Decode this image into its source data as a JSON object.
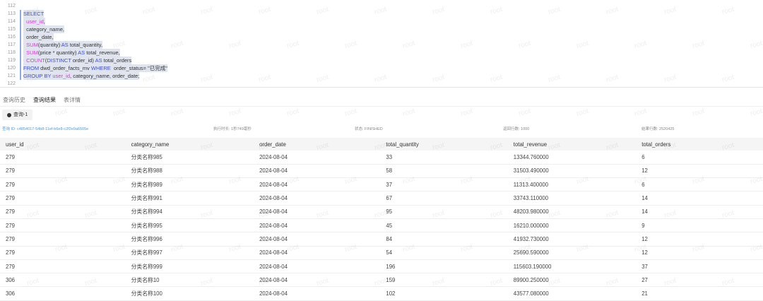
{
  "editor": {
    "lines": [
      {
        "n": "112",
        "tokens": []
      },
      {
        "n": "113",
        "tokens": [
          {
            "t": "SELECT",
            "c": "kw"
          }
        ]
      },
      {
        "n": "114",
        "tokens": [
          {
            "t": "  "
          },
          {
            "t": "user_id",
            "c": "id"
          },
          {
            "t": ","
          }
        ]
      },
      {
        "n": "115",
        "tokens": [
          {
            "t": "  category_name,"
          }
        ]
      },
      {
        "n": "116",
        "tokens": [
          {
            "t": "  order_date,"
          }
        ]
      },
      {
        "n": "117",
        "tokens": [
          {
            "t": "  "
          },
          {
            "t": "SUM",
            "c": "fn"
          },
          {
            "t": "(quantity) "
          },
          {
            "t": "AS",
            "c": "kw"
          },
          {
            "t": " total_quantity,"
          }
        ]
      },
      {
        "n": "118",
        "tokens": [
          {
            "t": "  "
          },
          {
            "t": "SUM",
            "c": "fn"
          },
          {
            "t": "(price * quantity) "
          },
          {
            "t": "AS",
            "c": "kw"
          },
          {
            "t": " total_revenue,"
          }
        ]
      },
      {
        "n": "119",
        "tokens": [
          {
            "t": "  "
          },
          {
            "t": "COUNT",
            "c": "fn"
          },
          {
            "t": "("
          },
          {
            "t": "DISTINCT",
            "c": "kw"
          },
          {
            "t": " order_id) "
          },
          {
            "t": "AS",
            "c": "kw"
          },
          {
            "t": " total_orders"
          }
        ]
      },
      {
        "n": "120",
        "tokens": [
          {
            "t": "FROM",
            "c": "kw"
          },
          {
            "t": " dwd_order_facts_mv "
          },
          {
            "t": "WHERE",
            "c": "kw"
          },
          {
            "t": "  order_status= \"已完成\""
          }
        ]
      },
      {
        "n": "121",
        "tokens": [
          {
            "t": "GROUP BY",
            "c": "kw"
          },
          {
            "t": " "
          },
          {
            "t": "user_id",
            "c": "id"
          },
          {
            "t": ", category_name, order_date;"
          }
        ]
      },
      {
        "n": "122",
        "tokens": []
      }
    ]
  },
  "tabs": [
    {
      "label": "查询历史"
    },
    {
      "label": "查询结果",
      "active": true
    },
    {
      "label": "表详情"
    }
  ],
  "query_button": "查询-1",
  "info": {
    "query_id": "查询 ID: c4854017-54b8-11ef-b6e8-c2f2e9a6505e",
    "duration": "执行时长: 1秒749毫秒",
    "status": "状态: FINISHED",
    "returned_rows": "返回行数: 1000",
    "result_rows": "结果行数: 2520425"
  },
  "watermark": "root",
  "table": {
    "columns": [
      "user_id",
      "category_name",
      "order_date",
      "total_quantity",
      "total_revenue",
      "total_orders"
    ],
    "rows": [
      [
        "279",
        "分类名称985",
        "2024-08-04",
        "33",
        "13344.760000",
        "6"
      ],
      [
        "279",
        "分类名称988",
        "2024-08-04",
        "58",
        "31503.490000",
        "12"
      ],
      [
        "279",
        "分类名称989",
        "2024-08-04",
        "37",
        "11313.400000",
        "6"
      ],
      [
        "279",
        "分类名称991",
        "2024-08-04",
        "67",
        "33743.110000",
        "14"
      ],
      [
        "279",
        "分类名称994",
        "2024-08-04",
        "95",
        "48203.980000",
        "14"
      ],
      [
        "279",
        "分类名称995",
        "2024-08-04",
        "45",
        "16210.000000",
        "9"
      ],
      [
        "279",
        "分类名称996",
        "2024-08-04",
        "84",
        "41932.730000",
        "12"
      ],
      [
        "279",
        "分类名称997",
        "2024-08-04",
        "54",
        "25690.590000",
        "12"
      ],
      [
        "279",
        "分类名称999",
        "2024-08-04",
        "196",
        "115603.190000",
        "37"
      ],
      [
        "306",
        "分类名称10",
        "2024-08-04",
        "159",
        "89900.250000",
        "27"
      ],
      [
        "306",
        "分类名称100",
        "2024-08-04",
        "102",
        "43577.080000",
        "21"
      ]
    ]
  }
}
